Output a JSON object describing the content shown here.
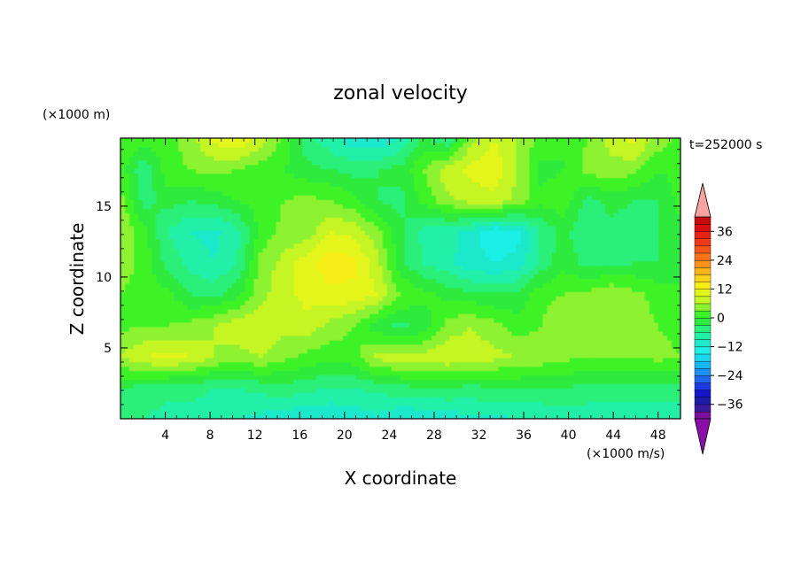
{
  "chart_data": {
    "type": "heatmap",
    "title": "zonal velocity",
    "time_label": "t=252000 s",
    "xlabel": "X coordinate",
    "ylabel": "Z coordinate",
    "x_unit": "(×1000 m/s)",
    "y_unit": "(×1000 m)",
    "xlim": [
      0,
      50
    ],
    "ylim": [
      0,
      19.8
    ],
    "x_ticks": [
      4,
      8,
      12,
      16,
      20,
      24,
      28,
      32,
      36,
      40,
      44,
      48
    ],
    "y_ticks": [
      5,
      10,
      15
    ],
    "colorbar": {
      "levels": [
        -42,
        -39,
        -36,
        -33,
        -30,
        -27,
        -24,
        -21,
        -18,
        -15,
        -12,
        -9,
        -6,
        -3,
        0,
        3,
        6,
        9,
        12,
        15,
        18,
        21,
        24,
        27,
        30,
        33,
        36,
        39,
        42
      ],
      "labels": [
        36,
        24,
        12,
        0,
        -12,
        -24,
        -36
      ],
      "colors": [
        "#7a0fa0",
        "#3a1a9c",
        "#1c1ca8",
        "#1414c8",
        "#1d39e6",
        "#1f66f0",
        "#1e90f2",
        "#16b8f3",
        "#1ad7ef",
        "#1ef0e6",
        "#1de9cc",
        "#21f0a8",
        "#29f07a",
        "#2eea3c",
        "#3df326",
        "#8cf230",
        "#c5f523",
        "#e4f51a",
        "#f7ed14",
        "#fbd21a",
        "#fdb21c",
        "#fc9018",
        "#f9731a",
        "#f5561a",
        "#f03a17",
        "#e82212",
        "#da0f0f",
        "#c70b0b"
      ],
      "over_color": "#f7a3a1",
      "under_color": "#8b0ea8"
    },
    "field_grid": {
      "nx": 25,
      "nz": 10,
      "x_range": [
        0,
        50
      ],
      "z_range": [
        0,
        19.8
      ],
      "units": "m/s",
      "values": [
        [
          3,
          2,
          1,
          5,
          10,
          12,
          8,
          2,
          -5,
          -8,
          -11,
          -12,
          -9,
          -2,
          -6,
          5,
          9,
          6,
          2,
          0,
          3,
          7,
          10,
          5,
          2
        ],
        [
          2,
          -6,
          2,
          3,
          4,
          3,
          1,
          0,
          -2,
          -3,
          -4,
          -3,
          -2,
          3,
          8,
          10,
          11,
          6,
          -1,
          0,
          4,
          5,
          4,
          0,
          1
        ],
        [
          4,
          -4,
          -2,
          -3,
          -2,
          0,
          1,
          3,
          4,
          3,
          1,
          -3,
          -4,
          1,
          5,
          7,
          8,
          5,
          1,
          2,
          -4,
          -2,
          -3,
          -3,
          1
        ],
        [
          6,
          1,
          -6,
          -9,
          -10,
          -7,
          1,
          4,
          4,
          9,
          8,
          4,
          -2,
          -7,
          -8,
          -10,
          -15,
          -13,
          -6,
          -2,
          -6,
          -4,
          -5,
          -3,
          -1
        ],
        [
          5,
          2,
          -4,
          -7,
          -9,
          -6,
          4,
          7,
          11,
          14,
          13,
          7,
          -2,
          -6,
          -8,
          -11,
          -12,
          -11,
          -5,
          -1,
          -4,
          -4,
          -3,
          -3,
          -2
        ],
        [
          3,
          1,
          1,
          -3,
          -4,
          -1,
          5,
          8,
          10,
          11,
          11,
          9,
          3,
          1,
          -1,
          -2,
          -3,
          -2,
          2,
          3,
          4,
          6,
          4,
          2,
          1
        ],
        [
          2,
          3,
          3,
          4,
          6,
          8,
          8,
          7,
          8,
          5,
          3,
          -2,
          -4,
          -2,
          4,
          6,
          4,
          1,
          3,
          6,
          6,
          5,
          4,
          3,
          2
        ],
        [
          6,
          9,
          10,
          9,
          6,
          5,
          6,
          4,
          2,
          1,
          2,
          7,
          8,
          7,
          9,
          8,
          7,
          6,
          5,
          4,
          3,
          3,
          3,
          4,
          3
        ],
        [
          -3,
          -4,
          -5,
          -5,
          -6,
          -6,
          -5,
          -4,
          -5,
          -6,
          -6,
          -5,
          -4,
          -3,
          -3,
          -4,
          -3,
          -3,
          -3,
          -3,
          -4,
          -4,
          -4,
          -4,
          -4
        ],
        [
          -6,
          -6,
          -7,
          -7,
          -8,
          -9,
          -10,
          -11,
          -12,
          -12,
          -11,
          -10,
          -12,
          -12,
          -11,
          -10,
          -10,
          -9,
          -9,
          -8,
          -8,
          -8,
          -9,
          -9,
          -8
        ]
      ]
    }
  }
}
